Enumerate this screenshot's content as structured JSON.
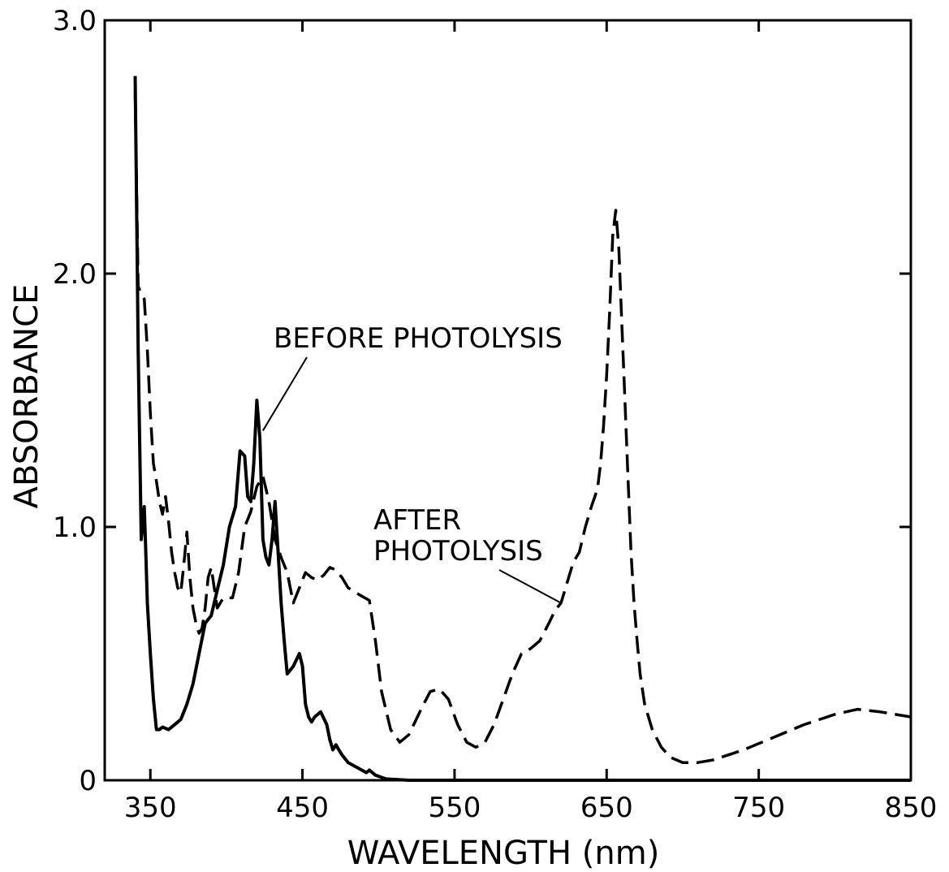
{
  "chart_data": {
    "type": "line",
    "xlabel": "WAVELENGTH (nm)",
    "ylabel": "ABSORBANCE",
    "xlim": [
      320,
      850
    ],
    "ylim": [
      0,
      3.0
    ],
    "x_ticks": [
      350,
      450,
      550,
      650,
      750,
      850
    ],
    "x_tick_labels": [
      "350",
      "450",
      "550",
      "650",
      "750",
      "850"
    ],
    "y_ticks": [
      0,
      1.0,
      2.0,
      3.0
    ],
    "y_tick_labels": [
      "0",
      "1.0",
      "2.0",
      "3.0"
    ],
    "grid": false,
    "series": [
      {
        "style": "solid",
        "x": [
          340,
          342,
          344,
          346,
          347,
          348,
          350,
          352,
          354,
          356,
          358,
          362,
          366,
          370,
          374,
          378,
          382,
          386,
          390,
          394,
          398,
          402,
          406,
          409,
          412,
          414,
          416,
          418,
          420,
          422,
          424,
          426,
          428,
          430,
          432,
          434,
          436,
          438,
          440,
          444,
          448,
          450,
          452,
          454,
          456,
          458,
          462,
          466,
          468,
          470,
          472,
          474,
          476,
          480,
          486,
          492,
          494,
          498,
          505,
          520,
          560,
          600,
          650,
          700,
          750,
          800,
          850
        ],
        "values": [
          2.78,
          1.7,
          0.95,
          1.08,
          0.9,
          0.7,
          0.5,
          0.32,
          0.2,
          0.2,
          0.21,
          0.2,
          0.22,
          0.24,
          0.3,
          0.38,
          0.5,
          0.62,
          0.65,
          0.75,
          0.85,
          1.0,
          1.08,
          1.3,
          1.28,
          1.12,
          1.1,
          1.25,
          1.5,
          1.35,
          0.95,
          0.88,
          0.85,
          0.95,
          1.1,
          0.9,
          0.7,
          0.55,
          0.42,
          0.45,
          0.5,
          0.45,
          0.3,
          0.25,
          0.23,
          0.25,
          0.27,
          0.22,
          0.16,
          0.12,
          0.14,
          0.12,
          0.1,
          0.07,
          0.05,
          0.03,
          0.04,
          0.02,
          0.005,
          0,
          0,
          0,
          0,
          0,
          0,
          0,
          0
        ]
      },
      {
        "style": "dashed",
        "x": [
          340,
          342,
          344,
          346,
          348,
          350,
          352,
          354,
          356,
          358,
          360,
          362,
          364,
          366,
          368,
          370,
          372,
          374,
          376,
          378,
          380,
          382,
          384,
          386,
          388,
          390,
          392,
          394,
          396,
          398,
          400,
          404,
          408,
          412,
          416,
          420,
          424,
          428,
          432,
          436,
          440,
          444,
          448,
          452,
          456,
          460,
          464,
          468,
          472,
          476,
          480,
          488,
          494,
          498,
          502,
          508,
          514,
          520,
          528,
          534,
          540,
          546,
          552,
          558,
          564,
          570,
          576,
          582,
          588,
          594,
          600,
          606,
          612,
          616,
          620,
          624,
          628,
          632,
          636,
          640,
          644,
          646,
          648,
          650,
          652,
          654,
          656,
          658,
          660,
          662,
          664,
          666,
          668,
          670,
          672,
          675,
          680,
          686,
          692,
          700,
          710,
          720,
          740,
          760,
          780,
          800,
          815,
          830,
          850
        ],
        "values": [
          2.72,
          1.95,
          1.92,
          1.9,
          1.7,
          1.45,
          1.25,
          1.18,
          1.1,
          1.05,
          1.12,
          1.02,
          0.9,
          0.82,
          0.76,
          0.74,
          0.85,
          0.98,
          0.8,
          0.68,
          0.62,
          0.58,
          0.6,
          0.68,
          0.8,
          0.84,
          0.76,
          0.68,
          0.7,
          0.72,
          0.72,
          0.72,
          0.82,
          1.0,
          1.06,
          1.16,
          1.2,
          1.1,
          0.95,
          0.88,
          0.82,
          0.7,
          0.76,
          0.82,
          0.8,
          0.79,
          0.81,
          0.84,
          0.83,
          0.8,
          0.76,
          0.73,
          0.71,
          0.55,
          0.35,
          0.2,
          0.15,
          0.18,
          0.28,
          0.35,
          0.36,
          0.32,
          0.22,
          0.15,
          0.13,
          0.15,
          0.22,
          0.32,
          0.42,
          0.5,
          0.52,
          0.55,
          0.62,
          0.67,
          0.7,
          0.78,
          0.86,
          0.9,
          1.0,
          1.08,
          1.15,
          1.25,
          1.4,
          1.6,
          1.85,
          2.15,
          2.25,
          2.1,
          1.8,
          1.5,
          1.2,
          0.9,
          0.7,
          0.55,
          0.42,
          0.3,
          0.2,
          0.13,
          0.09,
          0.07,
          0.07,
          0.08,
          0.12,
          0.17,
          0.22,
          0.26,
          0.28,
          0.27,
          0.25
        ]
      }
    ],
    "annotations": {
      "before": {
        "text": "BEFORE PHOTOLYSIS",
        "points_to": {
          "x": 424,
          "y": 1.38
        }
      },
      "after": {
        "line1": "AFTER",
        "line2": "PHOTOLYSIS",
        "points_to": {
          "x": 620,
          "y": 0.7
        }
      }
    }
  }
}
